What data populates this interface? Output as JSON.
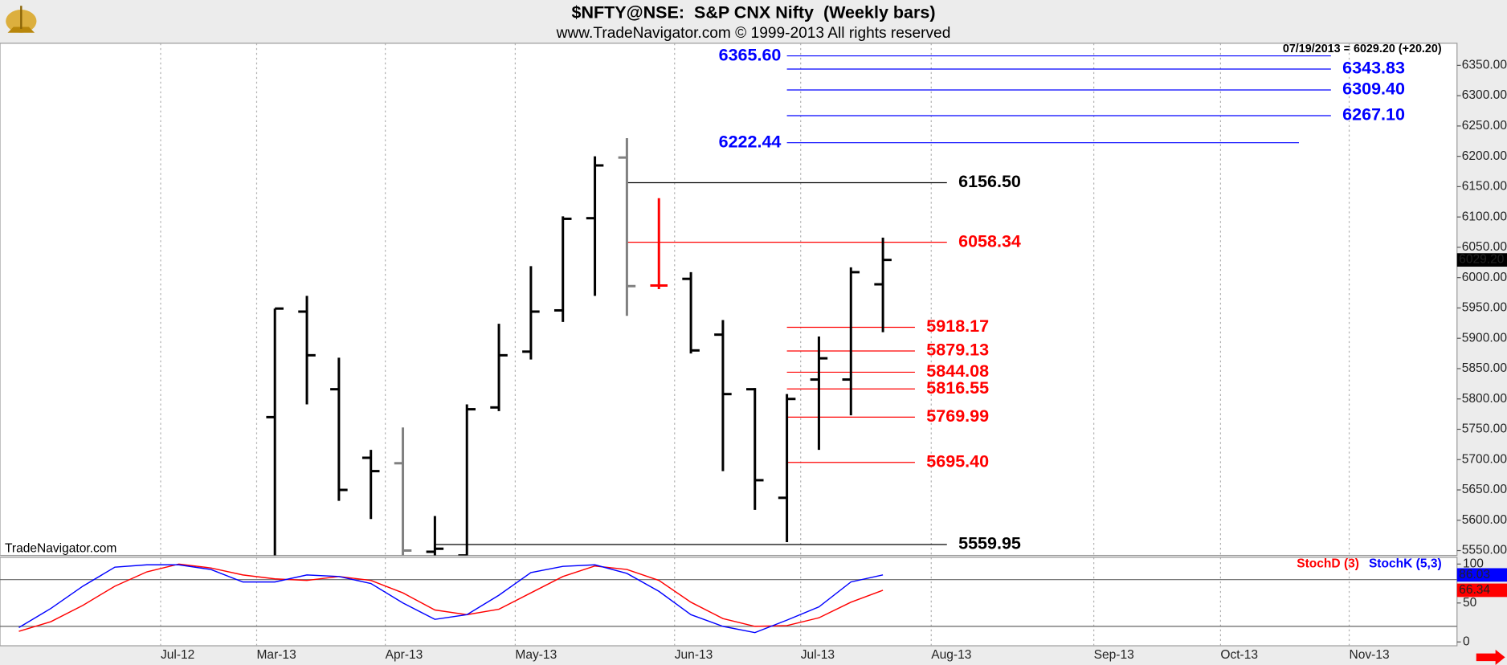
{
  "chart_data": [
    {
      "type": "ohlc",
      "title": "$NFTY@NSE:  S&P CNX Nifty  (Weekly bars)",
      "subtitle": "www.TradeNavigator.com © 1999-2013 All rights reserved",
      "header": "07/19/2013 = 6029.20 (+20.20)",
      "watermark": "TradeNavigator.com",
      "x": [
        0,
        1,
        2,
        3,
        4,
        5,
        6,
        7,
        8,
        9,
        10,
        11,
        12,
        13,
        14,
        15,
        16,
        17,
        18,
        19
      ],
      "open": [
        5770,
        5944,
        5816,
        5703,
        5694,
        5548,
        5542,
        5786,
        5878,
        5946,
        6098,
        6198,
        5987,
        5998,
        5906,
        5816,
        5637,
        5832,
        5832,
        5989
      ],
      "high": [
        5949,
        5970,
        5868,
        5716,
        5753,
        5607,
        5791,
        5924,
        6019,
        6101,
        6200,
        6230,
        6131,
        6009,
        5930,
        5818,
        5808,
        5903,
        6017,
        6066
      ],
      "low": [
        5542,
        5791,
        5632,
        5602,
        5542,
        5542,
        5542,
        5780,
        5865,
        5927,
        5970,
        5937,
        5981,
        5875,
        5681,
        5617,
        5564,
        5716,
        5773,
        5910
      ],
      "close": [
        5949,
        5872,
        5650,
        5681,
        5550,
        5553,
        5783,
        5872,
        5944,
        6097,
        6185,
        5986,
        5987,
        5880,
        5808,
        5666,
        5800,
        5867,
        6009,
        6029.2
      ],
      "colors": [
        "#000000",
        "#000000",
        "#000000",
        "#000000",
        "#808080",
        "#000000",
        "#000000",
        "#000000",
        "#000000",
        "#000000",
        "#000000",
        "#808080",
        "#ff0000",
        "#000000",
        "#000000",
        "#000000",
        "#000000",
        "#000000",
        "#000000",
        "#000000"
      ],
      "last_label": "6029.20",
      "xlim": [
        -8.59,
        36.94
      ],
      "xticks": [
        {
          "value": -3.57,
          "label": "Jul-12"
        },
        {
          "value": -0.57,
          "label": "Mar-13"
        },
        {
          "value": 3.45,
          "label": "Apr-13"
        },
        {
          "value": 7.51,
          "label": "May-13"
        },
        {
          "value": 12.49,
          "label": "Jun-13"
        },
        {
          "value": 16.43,
          "label": "Jul-13"
        },
        {
          "value": 20.51,
          "label": "Aug-13"
        },
        {
          "value": 25.59,
          "label": "Sep-13"
        },
        {
          "value": 29.55,
          "label": "Oct-13"
        },
        {
          "value": 33.57,
          "label": "Nov-13"
        }
      ],
      "ylim": [
        5542,
        6386.4
      ],
      "yticks": [
        {
          "value": 5550,
          "label": "5550.00"
        },
        {
          "value": 5600,
          "label": "5600.00"
        },
        {
          "value": 5650,
          "label": "5650.00"
        },
        {
          "value": 5700,
          "label": "5700.00"
        },
        {
          "value": 5750,
          "label": "5750.00"
        },
        {
          "value": 5800,
          "label": "5800.00"
        },
        {
          "value": 5850,
          "label": "5850.00"
        },
        {
          "value": 5900,
          "label": "5900.00"
        },
        {
          "value": 5950,
          "label": "5950.00"
        },
        {
          "value": 6000,
          "label": "6000.00"
        },
        {
          "value": 6050,
          "label": "6050.00"
        },
        {
          "value": 6100,
          "label": "6100.00"
        },
        {
          "value": 6150,
          "label": "6150.00"
        },
        {
          "value": 6200,
          "label": "6200.00"
        },
        {
          "value": 6250,
          "label": "6250.00"
        },
        {
          "value": 6300,
          "label": "6300.00"
        },
        {
          "value": 6350,
          "label": "6350.00"
        }
      ],
      "levels": [
        {
          "value": 6365.6,
          "label": "6365.60",
          "color": "#0000ff",
          "x_range": [
            16,
            33
          ],
          "label_side": "left"
        },
        {
          "value": 6343.83,
          "label": "6343.83",
          "color": "#0000ff",
          "x_range": [
            16,
            33
          ],
          "label_side": "right"
        },
        {
          "value": 6309.4,
          "label": "6309.40",
          "color": "#0000ff",
          "x_range": [
            16,
            33
          ],
          "label_side": "right"
        },
        {
          "value": 6267.1,
          "label": "6267.10",
          "color": "#0000ff",
          "x_range": [
            16,
            33
          ],
          "label_side": "right"
        },
        {
          "value": 6222.44,
          "label": "6222.44",
          "color": "#0000ff",
          "x_range": [
            16,
            32
          ],
          "label_side": "left"
        },
        {
          "value": 6156.5,
          "label": "6156.50",
          "color": "#000000",
          "x_range": [
            11,
            21
          ],
          "label_side": "right"
        },
        {
          "value": 6058.34,
          "label": "6058.34",
          "color": "#ff0000",
          "x_range": [
            11,
            21
          ],
          "label_side": "right"
        },
        {
          "value": 5918.17,
          "label": "5918.17",
          "color": "#ff0000",
          "x_range": [
            16,
            20
          ],
          "label_side": "right"
        },
        {
          "value": 5879.13,
          "label": "5879.13",
          "color": "#ff0000",
          "x_range": [
            16,
            20
          ],
          "label_side": "right"
        },
        {
          "value": 5844.08,
          "label": "5844.08",
          "color": "#ff0000",
          "x_range": [
            16,
            20
          ],
          "label_side": "right"
        },
        {
          "value": 5816.55,
          "label": "5816.55",
          "color": "#ff0000",
          "x_range": [
            16,
            20
          ],
          "label_side": "right"
        },
        {
          "value": 5769.99,
          "label": "5769.99",
          "color": "#ff0000",
          "x_range": [
            16,
            20
          ],
          "label_side": "right"
        },
        {
          "value": 5695.4,
          "label": "5695.40",
          "color": "#ff0000",
          "x_range": [
            16,
            20
          ],
          "label_side": "right"
        },
        {
          "value": 5559.95,
          "label": "5559.95",
          "color": "#000000",
          "x_range": [
            5,
            21
          ],
          "label_side": "right"
        }
      ]
    },
    {
      "type": "line",
      "x": [
        -8,
        -7,
        -6,
        -5,
        -4,
        -3,
        -2,
        -1,
        0,
        1,
        2,
        3,
        4,
        5,
        6,
        7,
        8,
        9,
        10,
        11,
        12,
        13,
        14,
        15,
        16,
        17,
        18,
        19
      ],
      "series": [
        {
          "name": "StochD (3)",
          "color": "#ff0000",
          "last_label": "66.34",
          "values": [
            13.6,
            26,
            47,
            71.6,
            90,
            100,
            95,
            86,
            81,
            79,
            84,
            79,
            63,
            41,
            35,
            42,
            63,
            84,
            97.5,
            93,
            79,
            51,
            30,
            20,
            21,
            31,
            51,
            66.34
          ]
        },
        {
          "name": "StochK (5,3)",
          "color": "#0000ff",
          "last_label": "86.03",
          "values": [
            18.5,
            43,
            71.6,
            96,
            99,
            99,
            93,
            77,
            77,
            86,
            84,
            75,
            50,
            29,
            35,
            60,
            89,
            97,
            99,
            88,
            65,
            35,
            20,
            12,
            28,
            45,
            77,
            86.03
          ]
        }
      ],
      "ylim": [
        -4.9,
        108.6
      ],
      "yticks": [
        0,
        50,
        100
      ],
      "bands": [
        20,
        80
      ]
    }
  ]
}
